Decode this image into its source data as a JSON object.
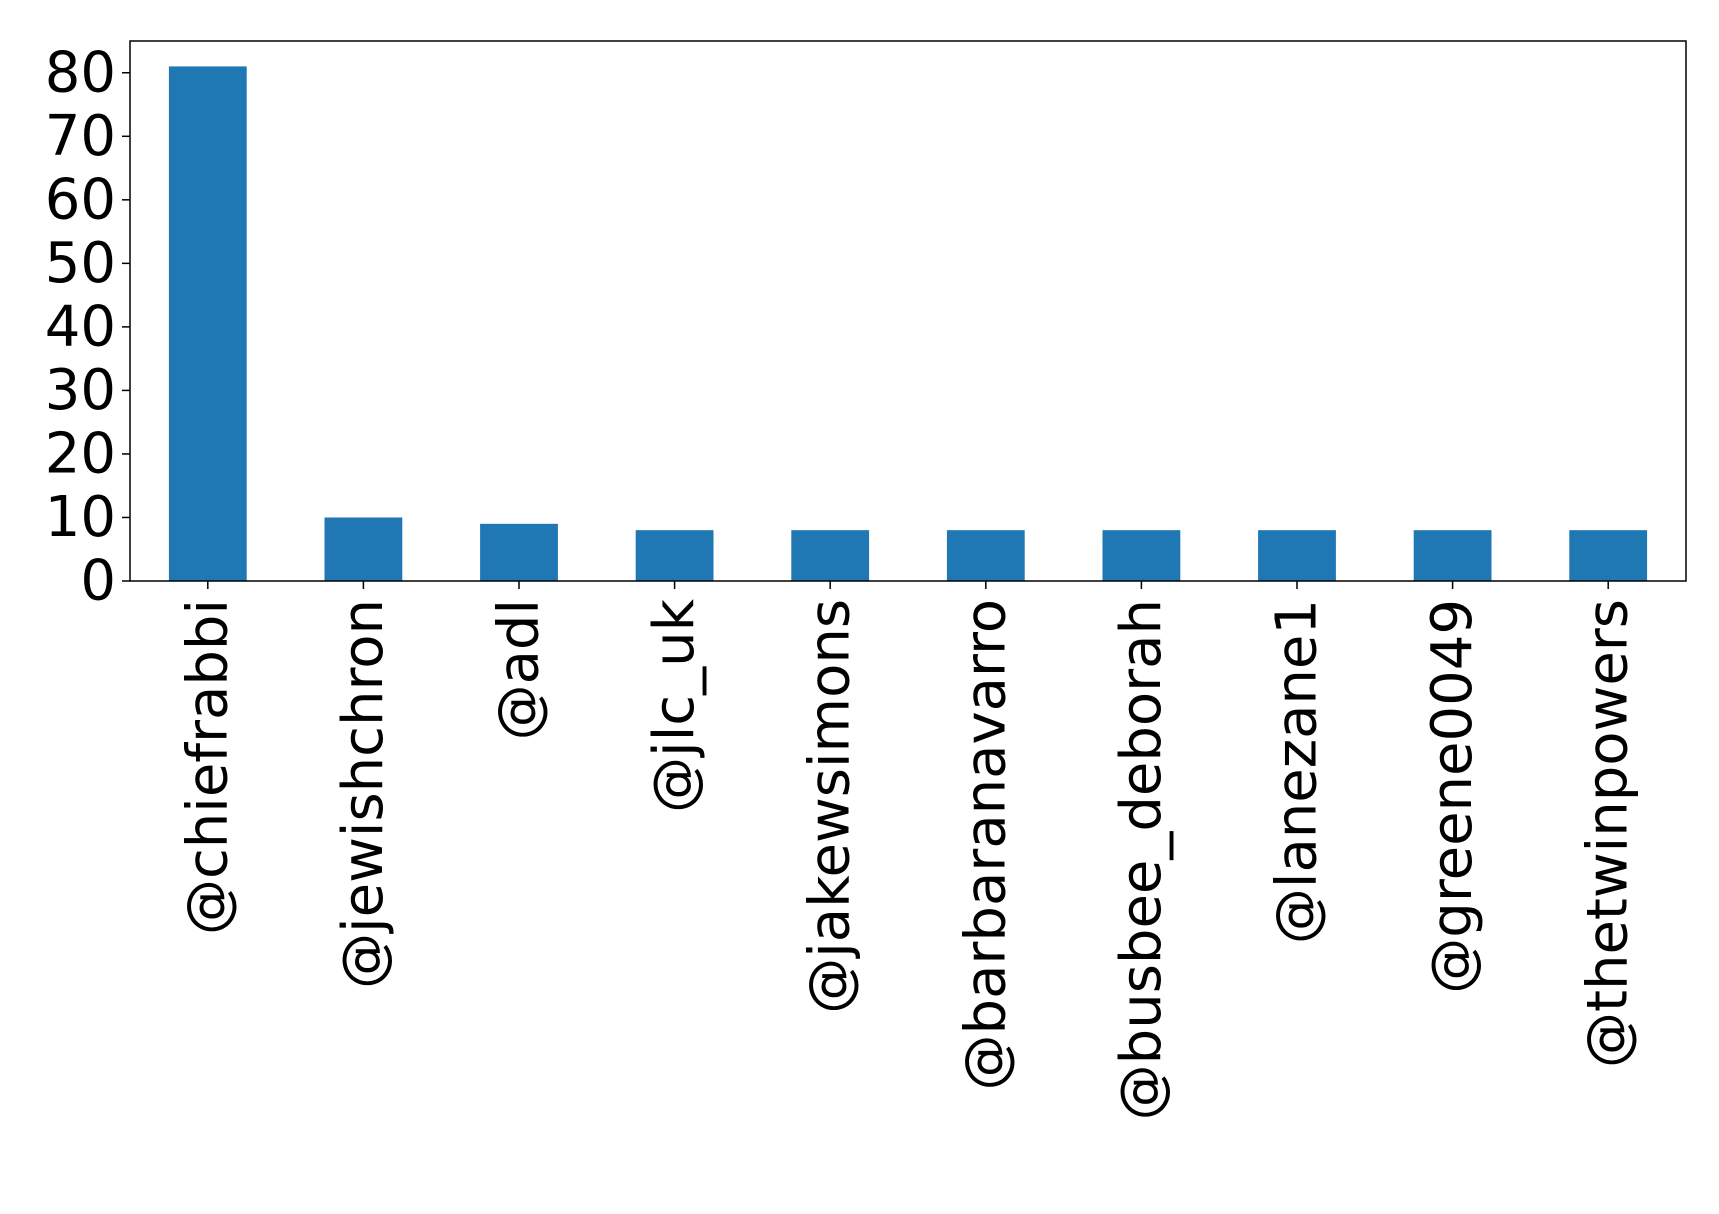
{
  "chart_data": {
    "type": "bar",
    "title": "",
    "xlabel": "",
    "ylabel": "",
    "categories": [
      "@chiefrabbi",
      "@jewishchron",
      "@adl",
      "@jlc_uk",
      "@jakewsimons",
      "@barbaranavarro",
      "@busbee_deborah",
      "@lanezane1",
      "@greene0049",
      "@thetwinpowers"
    ],
    "values": [
      81,
      10,
      9,
      8,
      8,
      8,
      8,
      8,
      8,
      8
    ],
    "yticks": [
      0,
      10,
      20,
      30,
      40,
      50,
      60,
      70,
      80
    ],
    "ylim": [
      0,
      85
    ],
    "grid": false,
    "legend": "none",
    "bar_color": "#1f77b4"
  }
}
